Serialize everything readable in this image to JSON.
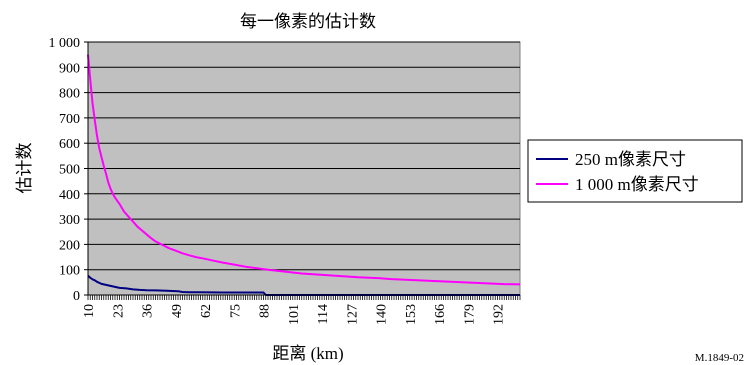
{
  "chart_data": {
    "type": "line",
    "title": "每一像素的估计数",
    "xlabel": "距离 (km)",
    "ylabel": "估计数",
    "ylim": [
      0,
      1000
    ],
    "xlim": [
      10,
      202
    ],
    "y_ticks": [
      "0",
      "100",
      "200",
      "300",
      "400",
      "500",
      "600",
      "700",
      "800",
      "900",
      "1 000"
    ],
    "x_ticks": [
      "10",
      "23",
      "36",
      "49",
      "62",
      "75",
      "88",
      "101",
      "114",
      "127",
      "140",
      "153",
      "166",
      "179",
      "192"
    ],
    "grid": "horizontal",
    "legend_position": "right",
    "series": [
      {
        "name": "250 m像素尺寸",
        "color": "#000080",
        "points": [
          [
            10,
            76
          ],
          [
            11,
            68
          ],
          [
            12,
            62
          ],
          [
            13,
            58
          ],
          [
            14,
            52
          ],
          [
            15,
            48
          ],
          [
            16,
            44
          ],
          [
            18,
            40
          ],
          [
            20,
            36
          ],
          [
            22,
            32
          ],
          [
            24,
            28
          ],
          [
            27,
            26
          ],
          [
            30,
            22
          ],
          [
            33,
            20
          ],
          [
            36,
            19
          ],
          [
            40,
            18
          ],
          [
            45,
            17
          ],
          [
            50,
            15
          ],
          [
            52,
            12
          ],
          [
            55,
            11
          ],
          [
            60,
            11
          ],
          [
            70,
            10
          ],
          [
            80,
            10
          ],
          [
            88,
            10
          ],
          [
            89,
            0
          ],
          [
            202,
            0
          ]
        ]
      },
      {
        "name": "1 000 m像素尺寸",
        "color": "#ff00ff",
        "points": [
          [
            10,
            950
          ],
          [
            11,
            850
          ],
          [
            12,
            760
          ],
          [
            13,
            690
          ],
          [
            14,
            630
          ],
          [
            15,
            580
          ],
          [
            16,
            545
          ],
          [
            17,
            510
          ],
          [
            18,
            480
          ],
          [
            19,
            445
          ],
          [
            20,
            420
          ],
          [
            21,
            400
          ],
          [
            22,
            385
          ],
          [
            24,
            360
          ],
          [
            26,
            330
          ],
          [
            28,
            310
          ],
          [
            30,
            290
          ],
          [
            32,
            270
          ],
          [
            34,
            255
          ],
          [
            36,
            240
          ],
          [
            38,
            225
          ],
          [
            40,
            212
          ],
          [
            43,
            198
          ],
          [
            46,
            185
          ],
          [
            49,
            175
          ],
          [
            52,
            165
          ],
          [
            55,
            157
          ],
          [
            58,
            150
          ],
          [
            62,
            143
          ],
          [
            66,
            135
          ],
          [
            70,
            128
          ],
          [
            75,
            120
          ],
          [
            80,
            112
          ],
          [
            85,
            106
          ],
          [
            90,
            100
          ],
          [
            95,
            95
          ],
          [
            100,
            90
          ],
          [
            105,
            85
          ],
          [
            110,
            82
          ],
          [
            115,
            79
          ],
          [
            120,
            76
          ],
          [
            125,
            73
          ],
          [
            130,
            70
          ],
          [
            135,
            68
          ],
          [
            140,
            66
          ],
          [
            145,
            63
          ],
          [
            150,
            61
          ],
          [
            155,
            59
          ],
          [
            160,
            57
          ],
          [
            165,
            55
          ],
          [
            170,
            53
          ],
          [
            175,
            51
          ],
          [
            180,
            49
          ],
          [
            185,
            47
          ],
          [
            190,
            45
          ],
          [
            195,
            43
          ],
          [
            202,
            42
          ]
        ]
      }
    ]
  },
  "figure_id": "M.1849-02"
}
